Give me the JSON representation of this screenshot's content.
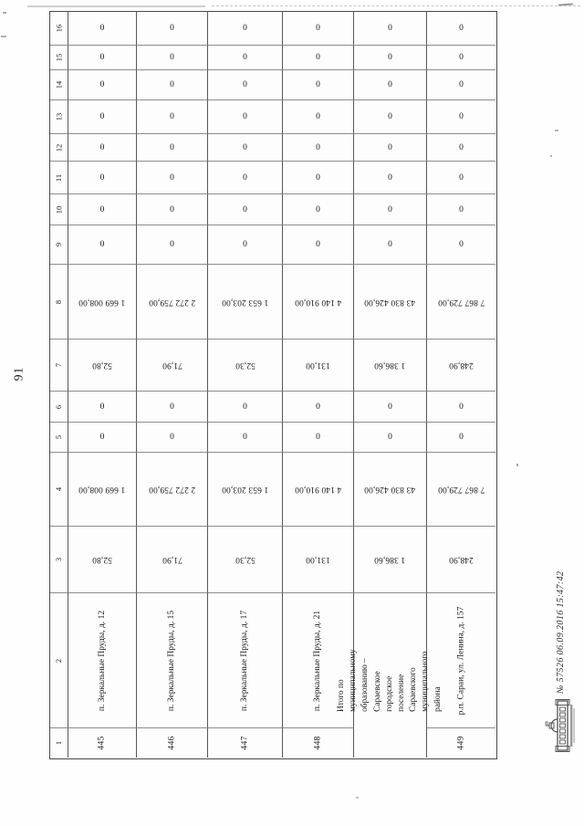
{
  "page": {
    "number": "91"
  },
  "stamp": {
    "icon": "government-building-emblem",
    "text": "№ 57526 06.09.2016 15:47:42"
  },
  "table": {
    "orientation": "rotated-90-ccw",
    "column_headers": [
      "1",
      "2",
      "3",
      "4",
      "5",
      "6",
      "7",
      "8",
      "9",
      "10",
      "11",
      "12",
      "13",
      "14",
      "15",
      "16"
    ],
    "rows": [
      {
        "cells": [
          "445",
          "п. Зеркальные Пруды, д. 12",
          "52,80",
          "1 669 008,00",
          "0",
          "0",
          "52,80",
          "1 669 008,00",
          "0",
          "0",
          "0",
          "0",
          "0",
          "0",
          "0",
          "0"
        ]
      },
      {
        "cells": [
          "446",
          "п. Зеркальные Пруды, д. 15",
          "71,90",
          "2 272 759,00",
          "0",
          "0",
          "71,90",
          "2 272 759,00",
          "0",
          "0",
          "0",
          "0",
          "0",
          "0",
          "0",
          "0"
        ]
      },
      {
        "cells": [
          "447",
          "п. Зеркальные Пруды, д. 17",
          "52,30",
          "1 653 203,00",
          "0",
          "0",
          "52,30",
          "1 653 203,00",
          "0",
          "0",
          "0",
          "0",
          "0",
          "0",
          "0",
          "0"
        ]
      },
      {
        "cells": [
          "448",
          "п. Зеркальные Пруды, д. 21",
          "131,00",
          "4 140 910,00",
          "0",
          "0",
          "131,00",
          "4 140 910,00",
          "0",
          "0",
          "0",
          "0",
          "0",
          "0",
          "0",
          "0"
        ]
      },
      {
        "merged_label": true,
        "cells": [
          "",
          "Итого по муниципальному образованию – Сараевское городское поселение Сараевского муниципального района",
          "1 386,60",
          "43 830 426,00",
          "0",
          "0",
          "1 386,60",
          "43 830 426,00",
          "0",
          "0",
          "0",
          "0",
          "0",
          "0",
          "0",
          "0"
        ]
      },
      {
        "cells": [
          "449",
          "р.п. Сараи, ул. Ленина, д. 157",
          "248,90",
          "7 867 729,00",
          "0",
          "0",
          "248,90",
          "7 867 729,00",
          "0",
          "0",
          "0",
          "0",
          "0",
          "0",
          "0",
          "0"
        ]
      }
    ]
  }
}
